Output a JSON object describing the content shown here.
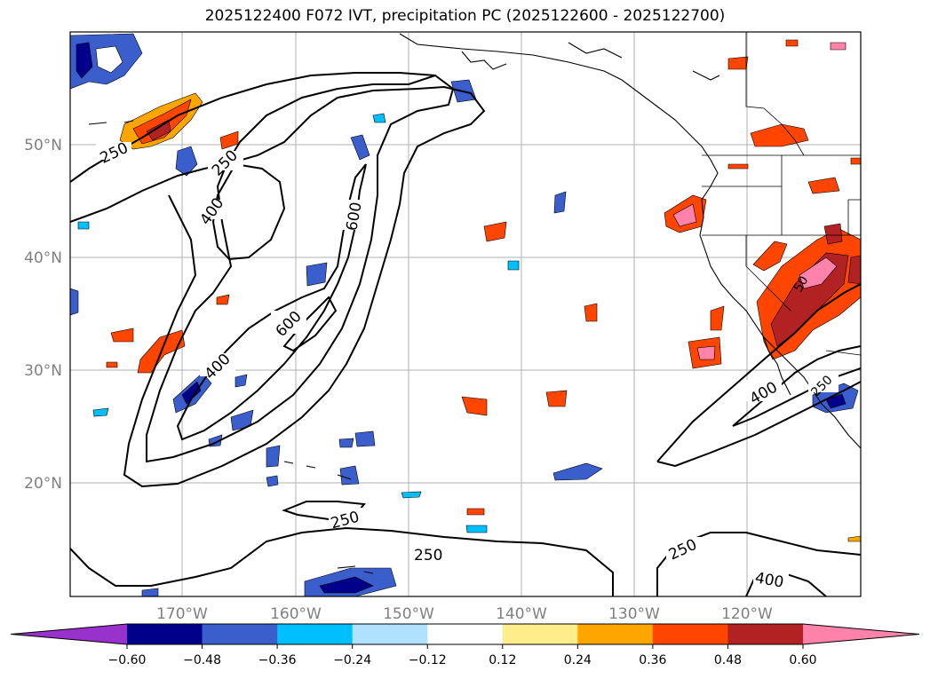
{
  "title": "2025122400 F072 IVT, precipitation PC (2025122600 - 2025122700)",
  "lat_labels": [
    "50°N",
    "40°N",
    "30°N",
    "20°N"
  ],
  "lon_labels": [
    "170°W",
    "160°W",
    "150°W",
    "140°W",
    "130°W",
    "120°W"
  ],
  "contour_labels": {
    "l250a": "250",
    "l250b": "250",
    "l400a": "400",
    "l600a": "600",
    "l600b": "600",
    "l400b": "400",
    "l400c": "400",
    "l250c": "250",
    "l250d": "250",
    "l250e": "250",
    "l400d": "400",
    "l250f": "250",
    "l50": "50"
  },
  "colorbar": {
    "ticks": [
      "−0.60",
      "−0.48",
      "−0.36",
      "−0.24",
      "−0.12",
      "0.12",
      "0.24",
      "0.36",
      "0.48",
      "0.60"
    ],
    "colors": [
      "#9932CC",
      "#00008B",
      "#3A5FCD",
      "#00BFFF",
      "#B0E2FF",
      "#FFFFFF",
      "#FFEC8B",
      "#FFA500",
      "#FF4500",
      "#B22222",
      "#FF82AB"
    ]
  },
  "palette": {
    "pos_low": "#FFEC8B",
    "pos_mid": "#FFA500",
    "pos_high": "#FF4500",
    "pos_higher": "#B22222",
    "pos_top": "#FF82AB",
    "neg_low": "#B0E2FF",
    "neg_mid": "#00BFFF",
    "neg_high": "#3A5FCD",
    "neg_top": "#00008B"
  }
}
